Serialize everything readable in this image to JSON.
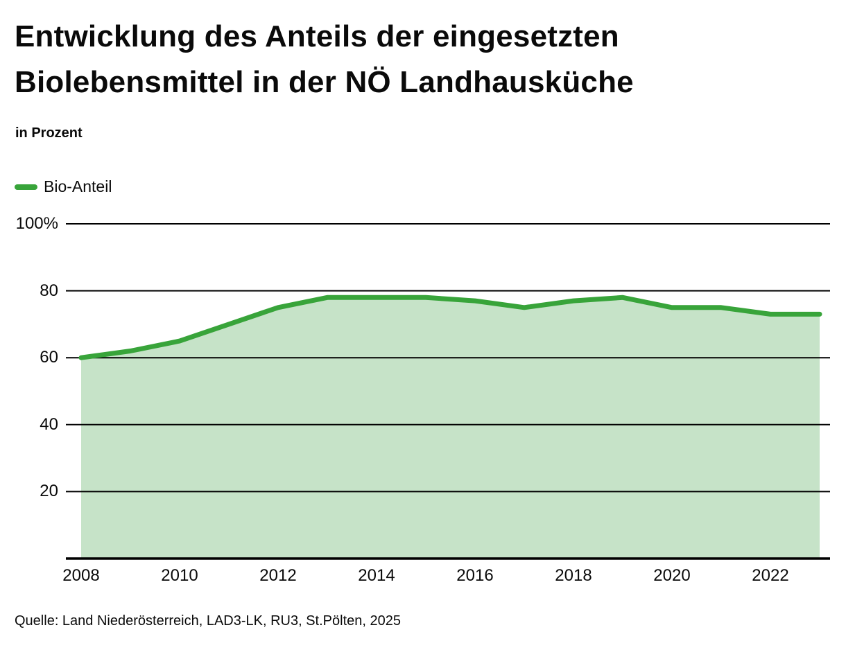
{
  "header": {
    "title": "Entwicklung des Anteils der eingesetzten Biolebensmittel in der NÖ Landhausküche",
    "subtitle": "in Prozent"
  },
  "legend": {
    "label": "Bio-Anteil",
    "color": "#38A43A"
  },
  "footer": {
    "source": "Quelle: Land Niederösterreich, LAD3-LK, RU3, St.Pölten, 2025"
  },
  "colors": {
    "line": "#38A43A",
    "fill": "#C6E3C8",
    "grid": "#000000",
    "text": "#0a0a0a"
  },
  "chart_data": {
    "type": "area",
    "title": "Entwicklung des Anteils der eingesetzten Biolebensmittel in der NÖ Landhausküche",
    "ylabel": "in Prozent",
    "x": [
      2008,
      2009,
      2010,
      2011,
      2012,
      2013,
      2014,
      2015,
      2016,
      2017,
      2018,
      2019,
      2020,
      2021,
      2022,
      2023
    ],
    "series": [
      {
        "name": "Bio-Anteil",
        "values": [
          60,
          62,
          65,
          70,
          75,
          78,
          78,
          78,
          77,
          75,
          77,
          78,
          75,
          75,
          73,
          73
        ]
      }
    ],
    "ylim": [
      0,
      100
    ],
    "xlim": [
      2008,
      2023
    ],
    "y_tick_values": [
      100,
      80,
      60,
      40,
      20
    ],
    "y_tick_labels": [
      "100%",
      "80",
      "60",
      "40",
      "20"
    ],
    "x_tick_values": [
      2008,
      2010,
      2012,
      2014,
      2016,
      2018,
      2020,
      2022
    ],
    "x_tick_labels": [
      "2008",
      "2010",
      "2012",
      "2014",
      "2016",
      "2018",
      "2020",
      "2022"
    ],
    "grid": true,
    "legend_position": "top-left",
    "line_color": "#38A43A",
    "fill_color": "#C6E3C8"
  }
}
